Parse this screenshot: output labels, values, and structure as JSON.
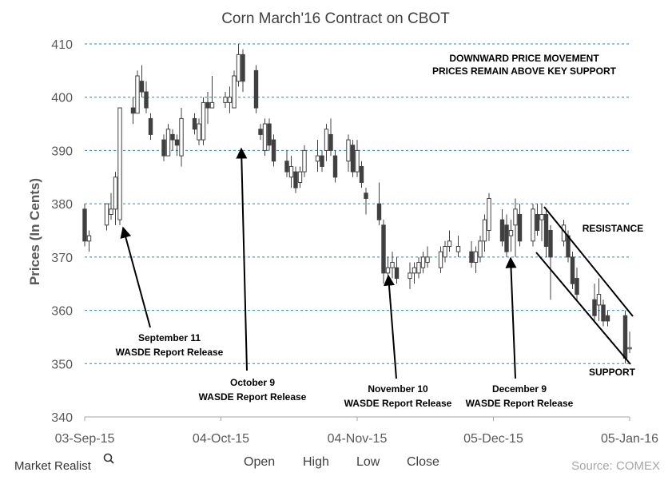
{
  "brand": {
    "name": "Market Realist",
    "icon": "magnifier-icon"
  },
  "source": "Source: COMEX",
  "chart_data": {
    "type": "candlestick",
    "title": "Corn March'16 Contract on CBOT",
    "ylabel": "Prices (In Cents)",
    "xlabel": "",
    "ylim": [
      340,
      410
    ],
    "yticks": [
      "340",
      "350",
      "360",
      "370",
      "380",
      "390",
      "400",
      "410"
    ],
    "xticks": [
      {
        "date": "2015-09-03",
        "label": "03-Sep-15"
      },
      {
        "date": "2015-10-04",
        "label": "04-Oct-15"
      },
      {
        "date": "2015-11-04",
        "label": "04-Nov-15"
      },
      {
        "date": "2015-12-05",
        "label": "05-Dec-15"
      },
      {
        "date": "2016-01-05",
        "label": "05-Jan-16"
      }
    ],
    "grid": {
      "horizontal": true,
      "style": "dashed",
      "color": "#2e8b9a"
    },
    "legend": [
      "Open",
      "High",
      "Low",
      "Close"
    ],
    "colors": {
      "candle": "#404040",
      "grid": "#2e8b9a",
      "text": "#595959"
    },
    "candles": [
      {
        "date": "2015-09-03",
        "open": 379,
        "high": 380,
        "low": 372,
        "close": 373
      },
      {
        "date": "2015-09-04",
        "open": 373,
        "high": 375,
        "low": 371,
        "close": 374
      },
      {
        "date": "2015-09-08",
        "open": 376,
        "high": 380,
        "low": 375,
        "close": 380
      },
      {
        "date": "2015-09-09",
        "open": 378,
        "high": 382,
        "low": 377,
        "close": 379
      },
      {
        "date": "2015-09-10",
        "open": 379,
        "high": 386,
        "low": 376,
        "close": 385
      },
      {
        "date": "2015-09-11",
        "open": 377,
        "high": 398,
        "low": 376,
        "close": 398
      },
      {
        "date": "2015-09-14",
        "open": 398,
        "high": 400,
        "low": 395,
        "close": 397
      },
      {
        "date": "2015-09-15",
        "open": 397,
        "high": 405,
        "low": 397,
        "close": 404
      },
      {
        "date": "2015-09-16",
        "open": 403,
        "high": 406,
        "low": 400,
        "close": 401
      },
      {
        "date": "2015-09-17",
        "open": 401,
        "high": 403,
        "low": 397,
        "close": 398
      },
      {
        "date": "2015-09-18",
        "open": 396,
        "high": 397,
        "low": 392,
        "close": 393
      },
      {
        "date": "2015-09-21",
        "open": 392,
        "high": 393,
        "low": 388,
        "close": 389
      },
      {
        "date": "2015-09-22",
        "open": 389,
        "high": 395,
        "low": 389,
        "close": 394
      },
      {
        "date": "2015-09-23",
        "open": 393,
        "high": 394,
        "low": 390,
        "close": 392
      },
      {
        "date": "2015-09-24",
        "open": 392,
        "high": 393,
        "low": 389,
        "close": 391
      },
      {
        "date": "2015-09-25",
        "open": 389,
        "high": 398,
        "low": 387,
        "close": 396
      },
      {
        "date": "2015-09-28",
        "open": 396,
        "high": 397,
        "low": 393,
        "close": 394
      },
      {
        "date": "2015-09-29",
        "open": 392,
        "high": 396,
        "low": 391,
        "close": 395
      },
      {
        "date": "2015-09-30",
        "open": 392,
        "high": 400,
        "low": 391,
        "close": 399
      },
      {
        "date": "2015-10-01",
        "open": 399,
        "high": 401,
        "low": 395,
        "close": 398
      },
      {
        "date": "2015-10-02",
        "open": 398,
        "high": 404,
        "low": 398,
        "close": 399
      },
      {
        "date": "2015-10-05",
        "open": 399,
        "high": 401,
        "low": 398,
        "close": 400
      },
      {
        "date": "2015-10-06",
        "open": 399,
        "high": 402,
        "low": 397,
        "close": 400
      },
      {
        "date": "2015-10-07",
        "open": 398,
        "high": 405,
        "low": 398,
        "close": 404
      },
      {
        "date": "2015-10-08",
        "open": 403,
        "high": 410,
        "low": 402,
        "close": 408
      },
      {
        "date": "2015-10-09",
        "open": 408,
        "high": 409,
        "low": 401,
        "close": 403
      },
      {
        "date": "2015-10-12",
        "open": 405,
        "high": 406,
        "low": 397,
        "close": 398
      },
      {
        "date": "2015-10-13",
        "open": 394,
        "high": 395,
        "low": 392,
        "close": 393
      },
      {
        "date": "2015-10-14",
        "open": 390,
        "high": 396,
        "low": 389,
        "close": 395
      },
      {
        "date": "2015-10-15",
        "open": 395,
        "high": 396,
        "low": 390,
        "close": 391
      },
      {
        "date": "2015-10-16",
        "open": 392,
        "high": 393,
        "low": 387,
        "close": 388
      },
      {
        "date": "2015-10-19",
        "open": 388,
        "high": 390,
        "low": 385,
        "close": 386
      },
      {
        "date": "2015-10-20",
        "open": 385,
        "high": 389,
        "low": 383,
        "close": 387
      },
      {
        "date": "2015-10-21",
        "open": 386,
        "high": 387,
        "low": 382,
        "close": 383
      },
      {
        "date": "2015-10-22",
        "open": 384,
        "high": 387,
        "low": 383,
        "close": 386
      },
      {
        "date": "2015-10-23",
        "open": 386,
        "high": 391,
        "low": 385,
        "close": 390
      },
      {
        "date": "2015-10-26",
        "open": 388,
        "high": 392,
        "low": 386,
        "close": 389
      },
      {
        "date": "2015-10-27",
        "open": 389,
        "high": 390,
        "low": 386,
        "close": 387
      },
      {
        "date": "2015-10-28",
        "open": 390,
        "high": 395,
        "low": 388,
        "close": 394
      },
      {
        "date": "2015-10-29",
        "open": 393,
        "high": 396,
        "low": 389,
        "close": 390
      },
      {
        "date": "2015-10-30",
        "open": 389,
        "high": 390,
        "low": 384,
        "close": 385
      },
      {
        "date": "2015-11-02",
        "open": 388,
        "high": 393,
        "low": 386,
        "close": 392
      },
      {
        "date": "2015-11-03",
        "open": 391,
        "high": 392,
        "low": 385,
        "close": 386
      },
      {
        "date": "2015-11-04",
        "open": 386,
        "high": 392,
        "low": 385,
        "close": 390
      },
      {
        "date": "2015-11-05",
        "open": 387,
        "high": 388,
        "low": 383,
        "close": 384
      },
      {
        "date": "2015-11-06",
        "open": 382,
        "high": 383,
        "low": 378,
        "close": 381
      },
      {
        "date": "2015-11-09",
        "open": 380,
        "high": 384,
        "low": 376,
        "close": 377
      },
      {
        "date": "2015-11-10",
        "open": 376,
        "high": 377,
        "low": 365,
        "close": 367
      },
      {
        "date": "2015-11-11",
        "open": 367,
        "high": 370,
        "low": 365,
        "close": 368
      },
      {
        "date": "2015-11-12",
        "open": 368,
        "high": 371,
        "low": 366,
        "close": 369
      },
      {
        "date": "2015-11-13",
        "open": 368,
        "high": 370,
        "low": 365,
        "close": 366
      },
      {
        "date": "2015-11-16",
        "open": 366,
        "high": 369,
        "low": 364,
        "close": 367
      },
      {
        "date": "2015-11-17",
        "open": 367,
        "high": 369,
        "low": 365,
        "close": 368
      },
      {
        "date": "2015-11-18",
        "open": 367,
        "high": 370,
        "low": 366,
        "close": 369
      },
      {
        "date": "2015-11-19",
        "open": 368,
        "high": 371,
        "low": 367,
        "close": 370
      },
      {
        "date": "2015-11-20",
        "open": 369,
        "high": 372,
        "low": 368,
        "close": 370
      },
      {
        "date": "2015-11-23",
        "open": 368,
        "high": 372,
        "low": 367,
        "close": 371
      },
      {
        "date": "2015-11-24",
        "open": 370,
        "high": 373,
        "low": 369,
        "close": 372
      },
      {
        "date": "2015-11-25",
        "open": 372,
        "high": 375,
        "low": 371,
        "close": 373
      },
      {
        "date": "2015-11-27",
        "open": 371,
        "high": 374,
        "low": 370,
        "close": 372
      },
      {
        "date": "2015-11-30",
        "open": 371,
        "high": 373,
        "low": 368,
        "close": 369
      },
      {
        "date": "2015-12-01",
        "open": 369,
        "high": 372,
        "low": 367,
        "close": 371
      },
      {
        "date": "2015-12-02",
        "open": 370,
        "high": 374,
        "low": 369,
        "close": 373
      },
      {
        "date": "2015-12-03",
        "open": 373,
        "high": 378,
        "low": 371,
        "close": 377
      },
      {
        "date": "2015-12-04",
        "open": 375,
        "high": 382,
        "low": 373,
        "close": 381
      },
      {
        "date": "2015-12-07",
        "open": 377,
        "high": 379,
        "low": 372,
        "close": 373
      },
      {
        "date": "2015-12-08",
        "open": 376,
        "high": 378,
        "low": 370,
        "close": 371
      },
      {
        "date": "2015-12-09",
        "open": 374,
        "high": 377,
        "low": 371,
        "close": 375
      },
      {
        "date": "2015-12-10",
        "open": 376,
        "high": 381,
        "low": 370,
        "close": 379
      },
      {
        "date": "2015-12-11",
        "open": 378,
        "high": 380,
        "low": 372,
        "close": 373
      },
      {
        "date": "2015-12-14",
        "open": 373,
        "high": 380,
        "low": 372,
        "close": 379
      },
      {
        "date": "2015-12-15",
        "open": 378,
        "high": 380,
        "low": 374,
        "close": 375
      },
      {
        "date": "2015-12-16",
        "open": 377,
        "high": 380,
        "low": 373,
        "close": 378
      },
      {
        "date": "2015-12-17",
        "open": 378,
        "high": 379,
        "low": 370,
        "close": 372
      },
      {
        "date": "2015-12-18",
        "open": 375,
        "high": 376,
        "low": 362,
        "close": 370
      },
      {
        "date": "2015-12-21",
        "open": 373,
        "high": 377,
        "low": 372,
        "close": 376
      },
      {
        "date": "2015-12-22",
        "open": 374,
        "high": 375,
        "low": 369,
        "close": 370
      },
      {
        "date": "2015-12-23",
        "open": 370,
        "high": 371,
        "low": 364,
        "close": 365
      },
      {
        "date": "2015-12-24",
        "open": 366,
        "high": 368,
        "low": 362,
        "close": 363
      },
      {
        "date": "2015-12-28",
        "open": 362,
        "high": 365,
        "low": 358,
        "close": 359
      },
      {
        "date": "2015-12-29",
        "open": 361,
        "high": 366,
        "low": 358,
        "close": 363
      },
      {
        "date": "2015-12-30",
        "open": 361,
        "high": 362,
        "low": 357,
        "close": 358
      },
      {
        "date": "2015-12-31",
        "open": 359,
        "high": 360,
        "low": 357,
        "close": 358
      },
      {
        "date": "2016-01-04",
        "open": 359,
        "high": 360,
        "low": 350,
        "close": 351
      },
      {
        "date": "2016-01-05",
        "open": 353,
        "high": 356,
        "low": 352,
        "close": 353
      }
    ],
    "annotations": {
      "headline_1": "DOWNWARD PRICE MOVEMENT",
      "headline_2": "PRICES REMAIN ABOVE KEY SUPPORT",
      "resistance": "RESISTANCE",
      "support": "SUPPORT",
      "events": [
        {
          "line1": "September 11",
          "line2": "WASDE Report Release"
        },
        {
          "line1": "October 9",
          "line2": "WASDE Report Release"
        },
        {
          "line1": "November 10",
          "line2": "WASDE Report Release"
        },
        {
          "line1": "December 9",
          "line2": "WASDE Report Release"
        }
      ]
    }
  }
}
